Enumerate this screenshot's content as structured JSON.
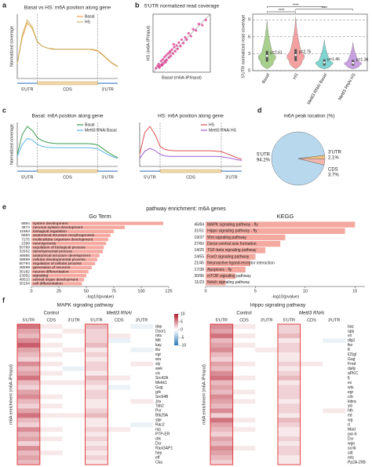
{
  "figure_texts": {
    "panel_labels": [
      "a",
      "b",
      "c",
      "d",
      "e",
      "f"
    ],
    "enrichment_title": "pathway enrichment: m6A genes"
  },
  "chart_data": [
    {
      "type": "line",
      "title": "Basal vs HS: m6A position along gene",
      "ylabel": "Normalized coverage",
      "xlim": [
        0,
        100
      ],
      "ylim": [
        0,
        1.1
      ],
      "x": [
        0,
        5,
        10,
        15,
        20,
        25,
        30,
        35,
        40,
        45,
        50,
        55,
        60,
        65,
        70,
        75,
        80,
        85,
        90,
        95,
        100
      ],
      "regions": [
        {
          "label": "5'UTR",
          "start": 0,
          "end": 20,
          "color": "#4a7fc1"
        },
        {
          "label": "CDS",
          "start": 20,
          "end": 80,
          "color": "#f0d9a8"
        },
        {
          "label": "3'UTR",
          "start": 80,
          "end": 100,
          "color": "#4a7fc1"
        }
      ],
      "series": [
        {
          "name": "Basal",
          "color": "#e8a24a",
          "values": [
            0.25,
            0.7,
            0.95,
            0.85,
            0.62,
            0.55,
            0.52,
            0.5,
            0.5,
            0.5,
            0.5,
            0.5,
            0.5,
            0.5,
            0.5,
            0.49,
            0.47,
            0.4,
            0.32,
            0.25,
            0.2
          ]
        },
        {
          "name": "HS",
          "color": "#c8b46a",
          "values": [
            0.25,
            0.75,
            1.0,
            0.88,
            0.63,
            0.55,
            0.52,
            0.51,
            0.5,
            0.5,
            0.5,
            0.5,
            0.5,
            0.5,
            0.5,
            0.5,
            0.48,
            0.41,
            0.33,
            0.26,
            0.21
          ]
        }
      ]
    },
    {
      "type": "scatter",
      "title": "5'UTR normalized read coverage",
      "xlabel": "Basal (m6A-IP/input)",
      "ylabel": "HS (m6A-IP/input)",
      "xlim": [
        0,
        10
      ],
      "ylim": [
        0,
        10
      ],
      "color": "#d6338a",
      "x": [
        0.5,
        0.8,
        1.0,
        1.2,
        1.4,
        1.5,
        1.7,
        1.8,
        2.0,
        2.1,
        2.3,
        2.4,
        2.6,
        2.8,
        3.0,
        3.1,
        3.3,
        3.5,
        3.7,
        3.9,
        4.1,
        4.3,
        4.5,
        4.8,
        5.0,
        5.3,
        5.6,
        5.9,
        6.2,
        6.6,
        7.0,
        7.5,
        8.0,
        8.6,
        9.2,
        1.1,
        1.6,
        2.2,
        2.9,
        3.6
      ],
      "values": [
        0.7,
        1.1,
        1.4,
        1.0,
        1.9,
        1.3,
        2.2,
        1.5,
        2.6,
        1.9,
        2.9,
        2.1,
        3.2,
        2.5,
        3.6,
        2.8,
        3.9,
        3.2,
        4.3,
        3.6,
        4.6,
        4.0,
        5.1,
        4.5,
        5.6,
        5.0,
        6.0,
        5.6,
        6.7,
        6.2,
        7.4,
        7.2,
        8.3,
        8.1,
        9.0,
        0.8,
        1.2,
        1.7,
        3.4,
        4.8
      ]
    },
    {
      "type": "violin",
      "ylabel": "5'UTR normalized read coverage",
      "ylim": [
        0,
        10
      ],
      "yticks": [
        0,
        3,
        6,
        9
      ],
      "grid": true,
      "categories": [
        "Basal",
        "HS",
        "Mettl3 RNAi Basal",
        "Mettl3 RNAi HS"
      ],
      "stats": [
        {
          "min": 0.3,
          "q1": 1.6,
          "median": 2.61,
          "q3": 3.5,
          "max": 9,
          "color": "#a8d08d"
        },
        {
          "min": 0.3,
          "q1": 1.7,
          "median": 2.76,
          "q3": 3.8,
          "max": 9.5,
          "color": "#f4a0a0"
        },
        {
          "min": 0.3,
          "q1": 0.9,
          "median": 1.46,
          "q3": 2.0,
          "max": 5.5,
          "color": "#7fd4d0"
        },
        {
          "min": 0.3,
          "q1": 0.9,
          "median": 1.36,
          "q3": 1.9,
          "max": 5,
          "color": "#c8a0e0"
        }
      ],
      "value_labels": [
        "μ=2.61",
        "μ=2.76",
        "μ=1.46",
        "μ=1.36"
      ],
      "brackets": [
        {
          "label": "****",
          "between": [
            "Basal",
            "HS"
          ]
        },
        {
          "label": "****",
          "between": [
            "HS",
            "Mettl3 RNAi HS"
          ]
        },
        {
          "label": "****",
          "between": [
            "Basal",
            "Mettl3 RNAi Basal"
          ]
        }
      ]
    },
    {
      "type": "line",
      "title": "Basal: m6A position along gene",
      "ylabel": "Normalized coverage",
      "xlim": [
        0,
        100
      ],
      "ylim": [
        0,
        1.1
      ],
      "x": [
        0,
        5,
        10,
        15,
        20,
        25,
        30,
        35,
        40,
        45,
        50,
        55,
        60,
        65,
        70,
        75,
        80,
        85,
        90,
        95,
        100
      ],
      "regions": [
        {
          "label": "5'UTR",
          "start": 0,
          "end": 20,
          "color": "#4a7fc1"
        },
        {
          "label": "CDS",
          "start": 20,
          "end": 80,
          "color": "#f0d9a8"
        },
        {
          "label": "3'UTR",
          "start": 80,
          "end": 100,
          "color": "#4a7fc1"
        }
      ],
      "series": [
        {
          "name": "Basal",
          "color": "#3a9a4a",
          "values": [
            0.3,
            0.8,
            1.0,
            0.9,
            0.72,
            0.64,
            0.6,
            0.58,
            0.57,
            0.57,
            0.57,
            0.57,
            0.57,
            0.57,
            0.57,
            0.56,
            0.54,
            0.45,
            0.36,
            0.28,
            0.22
          ]
        },
        {
          "name": "Mettl3 RNAi Basal",
          "color": "#5ab4e6",
          "values": [
            0.25,
            0.55,
            0.7,
            0.66,
            0.55,
            0.5,
            0.48,
            0.47,
            0.47,
            0.47,
            0.47,
            0.47,
            0.47,
            0.47,
            0.47,
            0.46,
            0.44,
            0.37,
            0.3,
            0.24,
            0.2
          ]
        }
      ]
    },
    {
      "type": "line",
      "title": "HS: m6A position along gene",
      "xlim": [
        0,
        100
      ],
      "ylim": [
        0,
        1.1
      ],
      "x": [
        0,
        5,
        10,
        15,
        20,
        25,
        30,
        35,
        40,
        45,
        50,
        55,
        60,
        65,
        70,
        75,
        80,
        85,
        90,
        95,
        100
      ],
      "regions": [
        {
          "label": "5'UTR",
          "start": 0,
          "end": 20,
          "color": "#4a7fc1"
        },
        {
          "label": "CDS",
          "start": 20,
          "end": 80,
          "color": "#f0d9a8"
        },
        {
          "label": "3'UTR",
          "start": 80,
          "end": 100,
          "color": "#4a7fc1"
        }
      ],
      "series": [
        {
          "name": "HS",
          "color": "#e05050",
          "values": [
            0.3,
            0.85,
            1.0,
            0.8,
            0.5,
            0.42,
            0.4,
            0.39,
            0.39,
            0.39,
            0.39,
            0.39,
            0.39,
            0.39,
            0.39,
            0.38,
            0.37,
            0.32,
            0.27,
            0.22,
            0.18
          ]
        },
        {
          "name": "Mettl3 RNAi HS",
          "color": "#a05ad0",
          "values": [
            0.2,
            0.38,
            0.45,
            0.4,
            0.3,
            0.26,
            0.25,
            0.25,
            0.25,
            0.25,
            0.25,
            0.25,
            0.25,
            0.25,
            0.25,
            0.25,
            0.24,
            0.22,
            0.2,
            0.17,
            0.15
          ]
        }
      ]
    },
    {
      "type": "pie",
      "title": "m6A peak location (%)",
      "categories": [
        "5'UTR",
        "3'UTR",
        "CDS"
      ],
      "values": [
        94.2,
        2.1,
        3.7
      ],
      "value_labels": [
        "94.2%",
        "2.1%",
        "3.7%"
      ],
      "colors": [
        "#b8d8ee",
        "#f2c27a",
        "#f4b8b0"
      ]
    },
    {
      "type": "bar",
      "title": "Go Term",
      "xlabel": "-log10(pvalue)",
      "xlim": [
        0,
        125
      ],
      "xticks": [
        0,
        25,
        50,
        75,
        100,
        125
      ],
      "color": "#f4a9a0",
      "left_labels": [
        "8864",
        "4874",
        "11864",
        "5653",
        "7275",
        "2399",
        "50789",
        "32502",
        "48856",
        "48869",
        "50794",
        "48699",
        "30182",
        "23052",
        "48513",
        "30154"
      ],
      "categories": [
        "system development",
        "nervous system development",
        "biological regulation",
        "anatomical structure morphogenesis",
        "multicellular organism development",
        "neurogenesis",
        "regulation of biological process",
        "developmental process",
        "anatomical structure development",
        "cellular developmental process",
        "regulation of cellular process",
        "generation of neurons",
        "neuron differentiation",
        "signaling",
        "animal organ development",
        "cell differentiation"
      ],
      "values": [
        120,
        85,
        75,
        72,
        70,
        68,
        66,
        65,
        62,
        60,
        58,
        55,
        52,
        50,
        48,
        46
      ]
    },
    {
      "type": "bar",
      "title": "KEGG",
      "xlabel": "-log10(pvalue)",
      "xlim": [
        0,
        16
      ],
      "xticks": [
        0,
        5,
        10,
        15
      ],
      "color": "#f4a9a0",
      "left_labels": [
        "45/84",
        "31/51",
        "19/37",
        "27/60",
        "14/25",
        "24/55",
        "21/45",
        "17/38",
        "30/96",
        "11/23"
      ],
      "categories": [
        "MAPK signaling pathway - fly",
        "Hippo signaling pathway - fly",
        "Wnt signaling pathway",
        "Dorso-ventral axis formation",
        "TGF-beta signaling pathway",
        "FoxO signaling pathway",
        "Neuroactive ligand-receptor interaction",
        "Apoptosis - fly",
        "mTOR signaling pathway",
        "Notch signaling pathway"
      ],
      "values": [
        15,
        14,
        8,
        7.5,
        6,
        5,
        4.5,
        4,
        3,
        2
      ]
    },
    {
      "type": "heatmap",
      "title": "MAPK signaling pathway",
      "ylabel": "m6A enrichment (m6A-IP/input)",
      "groups": [
        "Control",
        "Mettl3 RNAi"
      ],
      "columns": [
        "5'UTR",
        "CDS",
        "3'UTR",
        "5'UTR",
        "CDS",
        "3'UTR"
      ],
      "zlim": [
        -10,
        10
      ],
      "zticks": [
        10,
        5,
        0,
        -5,
        -10
      ],
      "rows": [
        "dop",
        "Dsor1",
        "mts",
        "Mtl",
        "kay",
        "tkv",
        "egr",
        "aru",
        "sty",
        "wek",
        "cic",
        "Src42A",
        "Mekk1",
        "Gug",
        "grk",
        "Src64B",
        "Jra",
        "Tab2",
        "Pvr",
        "Btk29A",
        "slpr",
        "Rac2",
        "ras",
        "PTP-ER",
        "drk",
        "Dcr",
        "RasGAP1",
        "hep",
        "eff",
        "Cka"
      ],
      "values": [
        [
          6,
          1,
          0,
          3,
          0,
          -1
        ],
        [
          4,
          0,
          1,
          2,
          0,
          0
        ],
        [
          3,
          1,
          0,
          2,
          1,
          0
        ],
        [
          5,
          0,
          0,
          2,
          -1,
          0
        ],
        [
          7,
          1,
          0,
          3,
          0,
          0
        ],
        [
          4,
          0,
          1,
          1,
          0,
          -1
        ],
        [
          3,
          1,
          0,
          2,
          0,
          0
        ],
        [
          2,
          0,
          0,
          1,
          0,
          0
        ],
        [
          5,
          1,
          0,
          2,
          0,
          1
        ],
        [
          3,
          0,
          -1,
          2,
          0,
          0
        ],
        [
          4,
          1,
          0,
          1,
          0,
          0
        ],
        [
          6,
          0,
          0,
          3,
          1,
          0
        ],
        [
          3,
          1,
          1,
          2,
          0,
          0
        ],
        [
          2,
          0,
          0,
          1,
          -1,
          0
        ],
        [
          4,
          0,
          0,
          2,
          0,
          0
        ],
        [
          5,
          1,
          0,
          2,
          0,
          0
        ],
        [
          3,
          0,
          0,
          1,
          0,
          1
        ],
        [
          2,
          1,
          0,
          1,
          0,
          0
        ],
        [
          4,
          0,
          0,
          2,
          0,
          0
        ],
        [
          6,
          1,
          1,
          3,
          0,
          0
        ],
        [
          3,
          0,
          0,
          1,
          0,
          0
        ],
        [
          2,
          0,
          0,
          1,
          0,
          -1
        ],
        [
          5,
          1,
          0,
          2,
          1,
          0
        ],
        [
          3,
          0,
          0,
          1,
          0,
          0
        ],
        [
          4,
          1,
          0,
          2,
          0,
          0
        ],
        [
          2,
          0,
          0,
          1,
          0,
          0
        ],
        [
          5,
          0,
          0,
          2,
          0,
          0
        ],
        [
          3,
          1,
          0,
          1,
          0,
          0
        ],
        [
          4,
          0,
          0,
          2,
          0,
          0
        ],
        [
          3,
          0,
          0,
          1,
          0,
          0
        ]
      ]
    },
    {
      "type": "heatmap",
      "title": "Hippo signaling pathway",
      "ylabel": "m6A enrichment (m6A-IP/input)",
      "groups": [
        "Control",
        "Mettl3 RNAi"
      ],
      "columns": [
        "5'UTR",
        "CDS",
        "3'UTR",
        "5'UTR",
        "CDS",
        "3'UTR"
      ],
      "zlim": [
        -10,
        10
      ],
      "rows": [
        "baz",
        "app",
        "vn",
        "dlg1",
        "tkv",
        "ft",
        "l(2)gl",
        "Gug",
        "Fred",
        "dally",
        "aPKC",
        "fj",
        "ex",
        "wts",
        "egr",
        "crb",
        "kibra",
        "yki",
        "hth",
        "ed",
        "wg",
        "d",
        "Mad",
        "par-6",
        "Dcr",
        "wgn",
        "scrib",
        "sdt",
        "mts",
        "Pp2A-29B"
      ],
      "values": [
        [
          5,
          1,
          0,
          2,
          0,
          0
        ],
        [
          4,
          0,
          0,
          2,
          0,
          0
        ],
        [
          6,
          1,
          0,
          3,
          0,
          0
        ],
        [
          3,
          0,
          0,
          1,
          0,
          -1
        ],
        [
          4,
          1,
          0,
          2,
          0,
          0
        ],
        [
          5,
          0,
          1,
          2,
          0,
          0
        ],
        [
          3,
          0,
          0,
          1,
          0,
          0
        ],
        [
          2,
          0,
          0,
          1,
          0,
          0
        ],
        [
          4,
          1,
          0,
          2,
          1,
          0
        ],
        [
          3,
          0,
          0,
          1,
          0,
          0
        ],
        [
          5,
          0,
          0,
          2,
          0,
          0
        ],
        [
          6,
          1,
          0,
          3,
          0,
          0
        ],
        [
          3,
          0,
          0,
          1,
          0,
          0
        ],
        [
          4,
          0,
          0,
          2,
          0,
          0
        ],
        [
          3,
          1,
          0,
          2,
          0,
          0
        ],
        [
          5,
          0,
          0,
          2,
          0,
          0
        ],
        [
          4,
          1,
          0,
          1,
          0,
          0
        ],
        [
          3,
          0,
          0,
          2,
          0,
          0
        ],
        [
          5,
          0,
          0,
          2,
          0,
          1
        ],
        [
          2,
          0,
          0,
          1,
          0,
          0
        ],
        [
          6,
          1,
          0,
          3,
          0,
          0
        ],
        [
          4,
          0,
          0,
          2,
          0,
          0
        ],
        [
          3,
          1,
          0,
          1,
          0,
          0
        ],
        [
          2,
          0,
          0,
          1,
          0,
          0
        ],
        [
          4,
          0,
          0,
          2,
          0,
          0
        ],
        [
          3,
          0,
          0,
          1,
          0,
          0
        ],
        [
          5,
          1,
          0,
          2,
          0,
          0
        ],
        [
          4,
          0,
          0,
          2,
          0,
          0
        ],
        [
          3,
          0,
          0,
          1,
          0,
          0
        ],
        [
          2,
          0,
          0,
          1,
          0,
          0
        ]
      ]
    }
  ]
}
